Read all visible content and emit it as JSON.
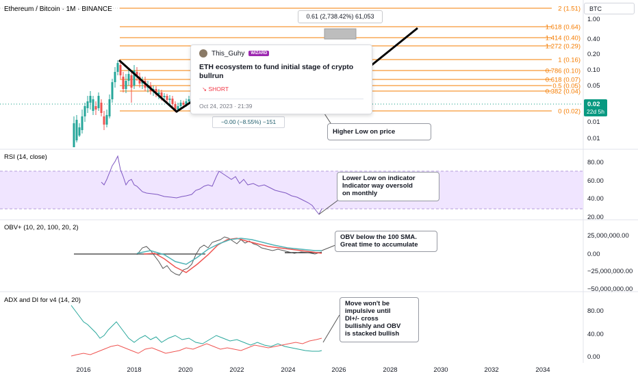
{
  "symbol_title": "Ethereum / Bitcoin · 1M · BINANCE",
  "currency_box": "BTC",
  "fib_levels": [
    {
      "label": "2 (1.51)",
      "value": 1.51
    },
    {
      "label": "1.618 (0.64)",
      "value": 0.64
    },
    {
      "label": "1.414 (0.40)",
      "value": 0.4
    },
    {
      "label": "1.272 (0.29)",
      "value": 0.29
    },
    {
      "label": "1 (0.16)",
      "value": 0.16
    },
    {
      "label": "0.786 (0.10)",
      "value": 0.1
    },
    {
      "label": "0.618 (0.07)",
      "value": 0.07
    },
    {
      "label": "0.5 (0.05)",
      "value": 0.05
    },
    {
      "label": "0.382 (0.04)",
      "value": 0.04
    },
    {
      "label": "0 (0.02)",
      "value": 0.02
    }
  ],
  "fib_top_label": "0.61 (2,738.42%) 61,053",
  "measure_label": "−0.00 (−8.55%) −151",
  "price_axis": [
    "1.00",
    "0.40",
    "0.20",
    "0.10",
    "0.05",
    "0.01",
    "0.01"
  ],
  "price_tag": {
    "value": "0.02",
    "countdown": "22d 5h"
  },
  "post": {
    "author": "This_Guhy",
    "badge": "WIZARD",
    "title": "ETH ecosystem to fund initial stage of crypto bullrun",
    "direction": "SHORT",
    "date": "Oct 24, 2023 · 21:39"
  },
  "callouts": {
    "higher_low": "Higher Low on price",
    "rsi": [
      "Lower Low on indicator",
      "Indicator way oversold",
      "on monthly"
    ],
    "obv": [
      "OBV below the 100 SMA.",
      "Great time to accumulate"
    ],
    "adx": [
      "Move won't be",
      "impulsive until",
      "DI+/- cross",
      "bullishly and OBV",
      "is stacked bullish"
    ]
  },
  "rsi": {
    "title": "RSI (14, close)",
    "axis": [
      "80.00",
      "60.00",
      "40.00",
      "20.00"
    ]
  },
  "obv": {
    "title": "OBV+ (10, 20, 100, 20, 2)",
    "axis": [
      "25,000,000.00",
      "0.00",
      "−25,000,000.00",
      "−50,000,000.00"
    ]
  },
  "adx": {
    "title": "ADX and DI for v4 (14, 20)",
    "axis": [
      "80.00",
      "40.00",
      "0.00"
    ]
  },
  "time_axis": [
    "2016",
    "2018",
    "2020",
    "2022",
    "2024",
    "2026",
    "2028",
    "2030",
    "2032",
    "2034"
  ],
  "colors": {
    "fib": "#f57c00",
    "up": "#26a69a",
    "down": "#ef5350",
    "rsi": "#7e57c2",
    "rsi_band": "#f0e5ff",
    "tag": "#089981"
  }
}
